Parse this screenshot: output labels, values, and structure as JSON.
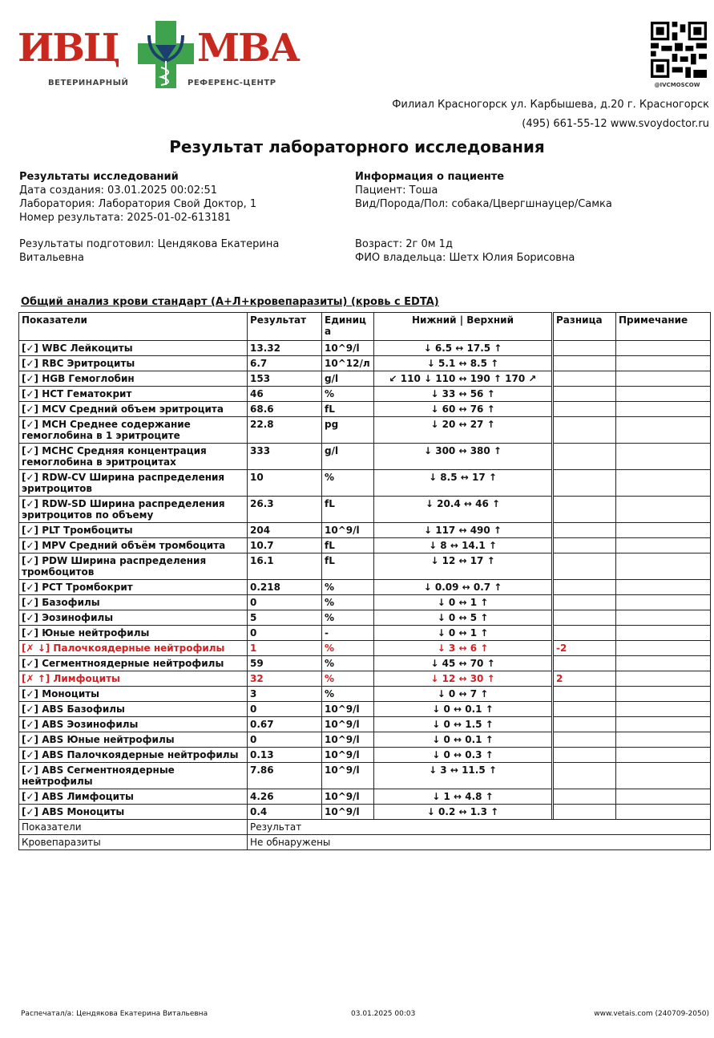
{
  "logo": {
    "left": "ИВЦ",
    "right": "МВА",
    "sub_left": "ВЕТЕРИНАРНЫЙ",
    "sub_right": "РЕФЕРЕНС-ЦЕНТР",
    "colors": {
      "red": "#c8281e",
      "green": "#3fa34d",
      "navy": "#1c3f6e"
    }
  },
  "qr": {
    "handle": "@IVCMOSCOW"
  },
  "address": {
    "line1": "Филиал Красногорск ул. Карбышева, д.20 г. Красногорск",
    "line2": "(495) 661-55-12 www.svoydoctor.ru"
  },
  "title": "Результат лабораторного исследования",
  "results_info": {
    "heading": "Результаты исследований",
    "created": "Дата создания: 03.01.2025 00:02:51",
    "lab": "Лаборатория: Лаборатория Свой Доктор, 1",
    "number": "Номер результата: 2025-01-02-613181",
    "prepared": "Результаты подготовил: Цендякова Екатерина",
    "prepared2": "Витальевна"
  },
  "patient_info": {
    "heading": "Информация о пациенте",
    "patient": "Пациент: Тоша",
    "species": "Вид/Порода/Пол: собака/Цвергшнауцер/Самка",
    "age": "Возраст: 2г 0м 1д",
    "owner": "ФИО владельца: Шетх Юлия Борисовна"
  },
  "section_title": "Общий анализ крови стандарт (А+Л+кровепаразиты) (кровь с EDTA)",
  "table": {
    "headers": [
      "Показатели",
      "Результат",
      "Единиц а",
      "Нижний | Верхний",
      "Разница",
      "Примечание"
    ],
    "abnormal_color": "#d42020",
    "rows": [
      {
        "name": "[✓] WBC Лейкоциты",
        "result": "13.32",
        "unit": "10^9/l",
        "range": "↓ 6.5 ↔ 17.5 ↑",
        "diff": ""
      },
      {
        "name": "[✓] RBC Эритроциты",
        "result": "6.7",
        "unit": "10^12/л",
        "range": "↓ 5.1 ↔ 8.5 ↑",
        "diff": ""
      },
      {
        "name": "[✓] HGB Гемоглобин",
        "result": "153",
        "unit": "g/l",
        "range": "↙ 110 ↓ 110 ↔ 190 ↑ 170 ↗",
        "diff": ""
      },
      {
        "name": "[✓] HCT Гематокрит",
        "result": "46",
        "unit": "%",
        "range": "↓ 33 ↔ 56 ↑",
        "diff": ""
      },
      {
        "name": "[✓] MCV Средний объем эритроцита",
        "result": "68.6",
        "unit": "fL",
        "range": "↓ 60 ↔ 76 ↑",
        "diff": ""
      },
      {
        "name": "[✓] MCH Среднее содержание гемоглобина в 1 эритроците",
        "result": "22.8",
        "unit": "pg",
        "range": "↓ 20 ↔ 27 ↑",
        "diff": ""
      },
      {
        "name": "[✓] MCHC Средняя концентрация гемоглобина в эритроцитах",
        "result": "333",
        "unit": "g/l",
        "range": "↓ 300 ↔ 380 ↑",
        "diff": ""
      },
      {
        "name": "[✓] RDW-CV Ширина распределения эритроцитов",
        "result": "10",
        "unit": "%",
        "range": "↓ 8.5 ↔ 17 ↑",
        "diff": ""
      },
      {
        "name": "[✓] RDW-SD Ширина распределения эритроцитов по объему",
        "result": "26.3",
        "unit": "fL",
        "range": "↓ 20.4 ↔ 46 ↑",
        "diff": ""
      },
      {
        "name": "[✓] PLT Тромбоциты",
        "result": "204",
        "unit": "10^9/l",
        "range": "↓ 117 ↔ 490 ↑",
        "diff": ""
      },
      {
        "name": "[✓] MPV Средний объём тромбоцита",
        "result": "10.7",
        "unit": "fL",
        "range": "↓ 8 ↔ 14.1 ↑",
        "diff": ""
      },
      {
        "name": "[✓] PDW Ширина распределения тромбоцитов",
        "result": "16.1",
        "unit": "fL",
        "range": "↓ 12 ↔ 17 ↑",
        "diff": ""
      },
      {
        "name": "[✓] PCT Тромбокрит",
        "result": "0.218",
        "unit": "%",
        "range": "↓ 0.09 ↔ 0.7 ↑",
        "diff": ""
      },
      {
        "name": "[✓] Базофилы",
        "result": "0",
        "unit": "%",
        "range": "↓ 0 ↔ 1 ↑",
        "diff": ""
      },
      {
        "name": "[✓] Эозинофилы",
        "result": "5",
        "unit": "%",
        "range": "↓ 0 ↔ 5 ↑",
        "diff": ""
      },
      {
        "name": "[✓] Юные нейтрофилы",
        "result": "0",
        "unit": "-",
        "range": "↓ 0 ↔ 1 ↑",
        "diff": ""
      },
      {
        "name": "[✗ ↓] Палочкоядерные нейтрофилы",
        "result": "1",
        "unit": "%",
        "range": "↓ 3 ↔ 6 ↑",
        "diff": "-2",
        "abnormal": true
      },
      {
        "name": "[✓] Сегментноядерные нейтрофилы",
        "result": "59",
        "unit": "%",
        "range": "↓ 45 ↔ 70 ↑",
        "diff": ""
      },
      {
        "name": "[✗ ↑] Лимфоциты",
        "result": "32",
        "unit": "%",
        "range": "↓ 12 ↔ 30 ↑",
        "diff": "2",
        "abnormal": true
      },
      {
        "name": "[✓] Моноциты",
        "result": "3",
        "unit": "%",
        "range": "↓ 0 ↔ 7 ↑",
        "diff": ""
      },
      {
        "name": "[✓] ABS Базофилы",
        "result": "0",
        "unit": "10^9/l",
        "range": "↓ 0 ↔ 0.1 ↑",
        "diff": ""
      },
      {
        "name": "[✓] ABS Эозинофилы",
        "result": "0.67",
        "unit": "10^9/l",
        "range": "↓ 0 ↔ 1.5 ↑",
        "diff": ""
      },
      {
        "name": "[✓] ABS Юные нейтрофилы",
        "result": "0",
        "unit": "10^9/l",
        "range": "↓ 0 ↔ 0.1 ↑",
        "diff": ""
      },
      {
        "name": "[✓] ABS Палочкоядерные нейтрофилы",
        "result": "0.13",
        "unit": "10^9/l",
        "range": "↓ 0 ↔ 0.3 ↑",
        "diff": ""
      },
      {
        "name": "[✓] ABS Сегментноядерные нейтрофилы",
        "result": "7.86",
        "unit": "10^9/l",
        "range": "↓ 3 ↔ 11.5 ↑",
        "diff": ""
      },
      {
        "name": "[✓] ABS Лимфоциты",
        "result": "4.26",
        "unit": "10^9/l",
        "range": "↓ 1 ↔ 4.8 ↑",
        "diff": ""
      },
      {
        "name": "[✓] ABS Моноциты",
        "result": "0.4",
        "unit": "10^9/l",
        "range": "↓ 0.2 ↔ 1.3 ↑",
        "diff": ""
      }
    ],
    "extra": [
      {
        "name": "Показатели",
        "value": "Результат"
      },
      {
        "name": "Кровепаразиты",
        "value": "Не обнаружены"
      }
    ]
  },
  "footer": {
    "printed": "Распечатал/а: Цендякова Екатерина Витальевна",
    "date": "03.01.2025 00:03",
    "site": "www.vetais.com (240709-2050)"
  }
}
